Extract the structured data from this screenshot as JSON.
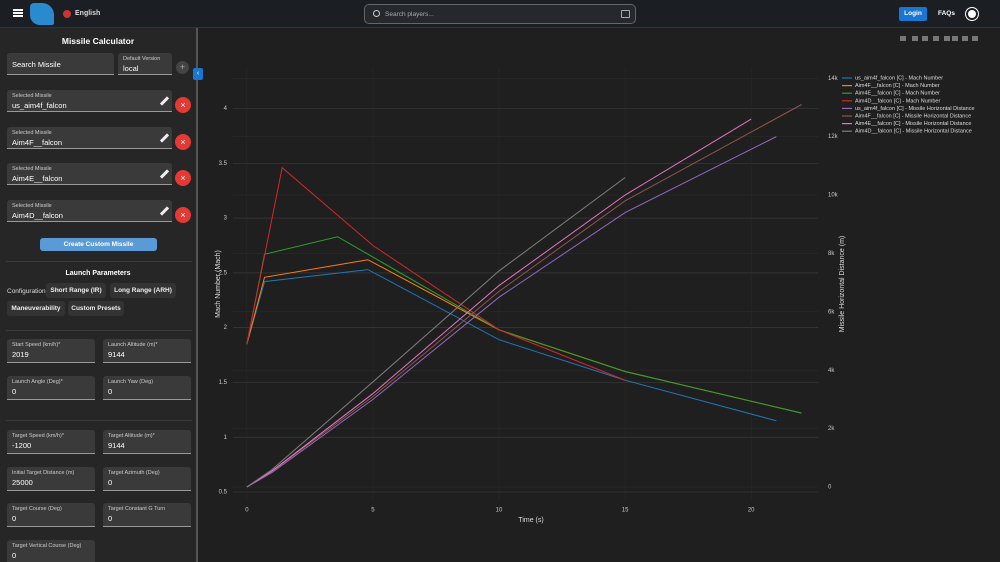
{
  "nav": {
    "language": "English",
    "search_placeholder": "Search players...",
    "login": "Login",
    "faqs": "FAQs"
  },
  "sidebar": {
    "title": "Missile Calculator",
    "search_missile": "Search Missile",
    "default_version": {
      "label": "Default Version",
      "value": "local"
    },
    "selected_missiles": [
      {
        "label": "Selected Missile",
        "value": "us_aim4f_falcon"
      },
      {
        "label": "Selected Missile",
        "value": "Aim4F__falcon"
      },
      {
        "label": "Selected Missile",
        "value": "Aim4E__falcon"
      },
      {
        "label": "Selected Missile",
        "value": "Aim4D__falcon"
      }
    ],
    "create_button": "Create Custom Missile",
    "launch_parameters": {
      "title": "Launch Parameters",
      "configuration_label": "Configuration:",
      "presets": [
        "Short Range (IR)",
        "Long Range (ARH)",
        "Maneuverability",
        "Custom Presets"
      ]
    },
    "launch_fields": [
      {
        "label": "Start Speed (km/h)*",
        "value": "2019"
      },
      {
        "label": "Launch Altitude (m)*",
        "value": "9144"
      },
      {
        "label": "Launch Angle (Deg)*",
        "value": "0"
      },
      {
        "label": "Launch Yaw (Deg)",
        "value": "0"
      }
    ],
    "target_fields": [
      {
        "label": "Target Speed (km/h)*",
        "value": "-1200"
      },
      {
        "label": "Target Altitude (m)*",
        "value": "9144"
      },
      {
        "label": "Initial Target Distance (m)",
        "value": "25000"
      },
      {
        "label": "Target Azimuth (Deg)",
        "value": "0"
      },
      {
        "label": "Target Course (Deg)",
        "value": "0"
      },
      {
        "label": "Target Constant G Turn",
        "value": "0"
      },
      {
        "label": "Target Vertical Course (Deg)",
        "value": "0"
      }
    ]
  },
  "chart_data": {
    "type": "line",
    "x_label": "Time (s)",
    "y_label": "Mach Number (Mach)",
    "y2_label": "Missile Horizontal Distance (m)",
    "xlim": [
      -0.55,
      22.65
    ],
    "xticks": [
      0,
      5,
      10,
      15,
      20
    ],
    "ylim": [
      0.427,
      4.37
    ],
    "yticks": [
      0.5,
      1,
      1.5,
      2,
      2.5,
      3,
      3.5,
      4
    ],
    "y2lim": [
      -445,
      14350
    ],
    "y2ticks": [
      0,
      {
        "value": 2000,
        "label": "2k"
      },
      {
        "value": 4000,
        "label": "4k"
      },
      {
        "value": 6000,
        "label": "6k"
      },
      {
        "value": 8000,
        "label": "8k"
      },
      {
        "value": 10000,
        "label": "10k"
      },
      {
        "value": 12000,
        "label": "12k"
      },
      {
        "value": 14000,
        "label": "14k"
      }
    ],
    "grid": true,
    "legend": "right",
    "series": [
      {
        "name": "us_aim4f_falcon [C] - Mach Number",
        "color": "#1f77b4",
        "x": [
          0,
          0.7,
          4.8,
          10,
          15,
          21
        ],
        "values": [
          1.85,
          2.42,
          2.53,
          1.89,
          1.52,
          1.15
        ]
      },
      {
        "name": "Aim4F__falcon [C] - Mach Number",
        "color": "#ff7f0e",
        "x": [
          0,
          0.7,
          4.8,
          10,
          15,
          22
        ],
        "values": [
          1.85,
          2.46,
          2.62,
          1.98,
          1.6,
          1.22
        ]
      },
      {
        "name": "Aim4E__falcon [C] - Mach Number",
        "color": "#2ca02c",
        "x": [
          0,
          0.7,
          3.6,
          10,
          15,
          22
        ],
        "values": [
          1.85,
          2.67,
          2.83,
          1.98,
          1.6,
          1.22
        ]
      },
      {
        "name": "Aim4D__falcon [C] - Mach Number",
        "color": "#d62728",
        "x": [
          0,
          1.4,
          5,
          10,
          15
        ],
        "values": [
          1.85,
          3.46,
          2.75,
          1.98,
          1.52
        ]
      },
      {
        "name": "us_aim4f_falcon [C] - Missile Horizontal Distance",
        "color": "#9467bd",
        "axis": "y2",
        "x": [
          0,
          1,
          5,
          10,
          15,
          21
        ],
        "values": [
          0,
          500,
          3000,
          6500,
          9400,
          12000
        ]
      },
      {
        "name": "Aim4F__falcon [C] - Missile Horizontal Distance",
        "color": "#8c564b",
        "axis": "y2",
        "x": [
          0,
          1,
          5,
          10,
          15,
          22
        ],
        "values": [
          0,
          540,
          3100,
          6700,
          9800,
          13100
        ]
      },
      {
        "name": "Aim4E__falcon [C] - Missile Horizontal Distance",
        "color": "#e377c2",
        "axis": "y2",
        "x": [
          0,
          1,
          5,
          10,
          15,
          20
        ],
        "values": [
          0,
          550,
          3200,
          6900,
          10000,
          12600
        ]
      },
      {
        "name": "Aim4D__falcon [C] - Missile Horizontal Distance",
        "color": "#7f7f7f",
        "axis": "y2",
        "x": [
          0,
          1,
          5,
          10,
          15
        ],
        "values": [
          0,
          600,
          3600,
          7400,
          10600
        ]
      }
    ]
  }
}
